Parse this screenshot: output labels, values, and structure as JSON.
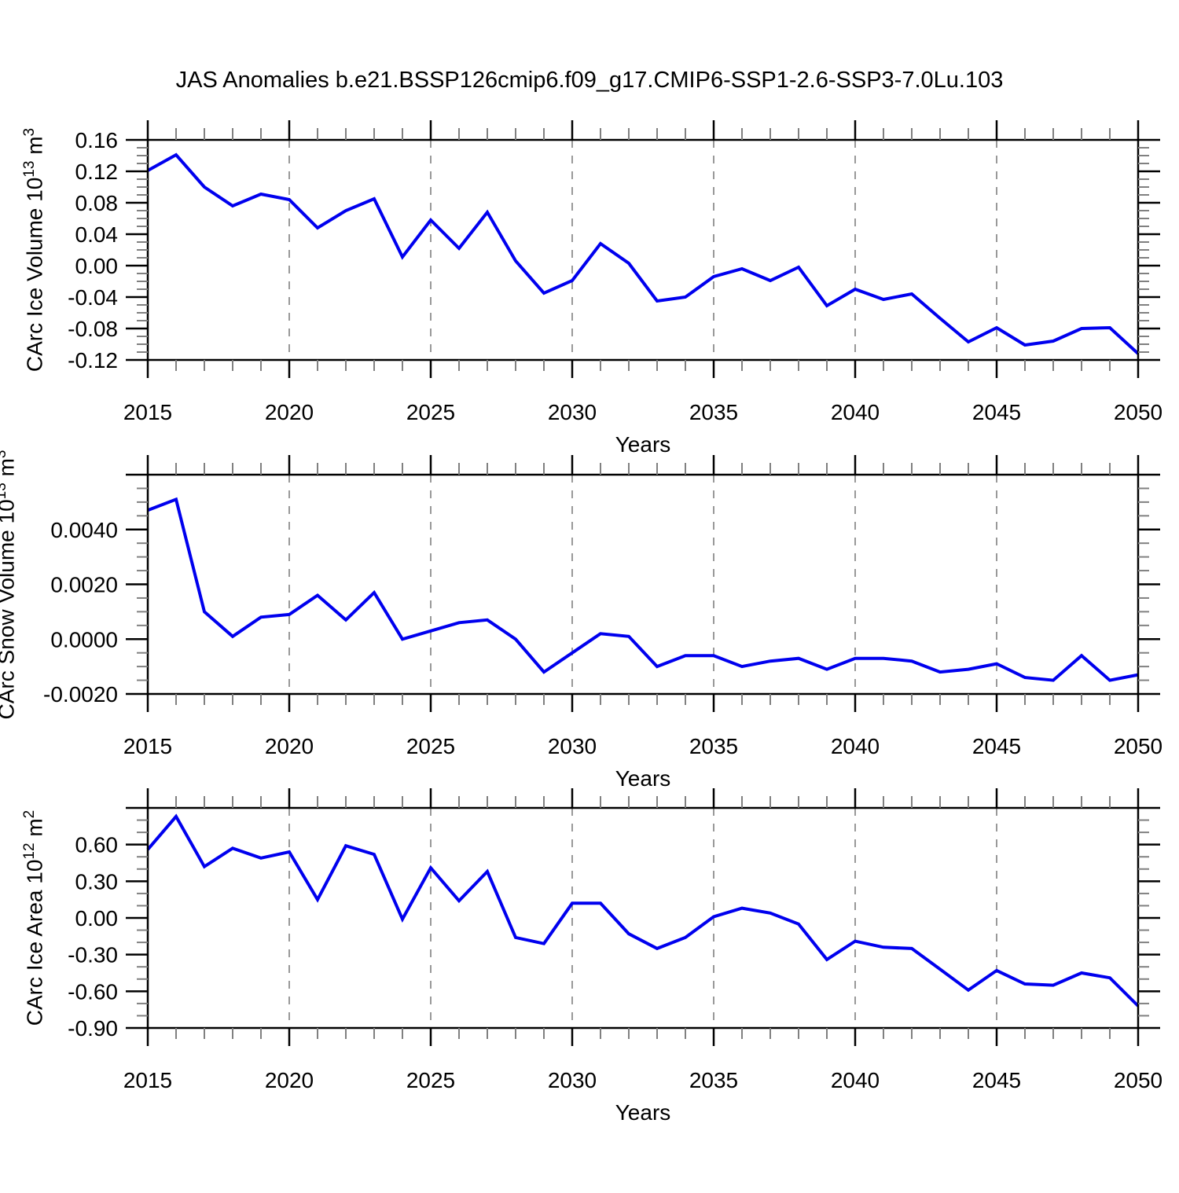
{
  "title": "JAS Anomalies b.e21.BSSP126cmip6.f09_g17.CMIP6-SSP1-2.6-SSP3-7.0Lu.103",
  "style": {
    "line_color": "#0000ee",
    "axis_color": "#000000",
    "minor_tick_color": "#808080",
    "grid_color": "#999999",
    "background": "#ffffff"
  },
  "chart_data": [
    {
      "type": "line",
      "xlabel": "Years",
      "ylabel": {
        "base": "CArc Ice Volume 10",
        "exp": "13",
        "unit": " m",
        "unit_exp": "3"
      },
      "x": {
        "start": 2015,
        "end": 2050,
        "step": 1
      },
      "values": [
        0.121,
        0.141,
        0.1,
        0.076,
        0.091,
        0.084,
        0.048,
        0.07,
        0.085,
        0.011,
        0.058,
        0.022,
        0.068,
        0.006,
        -0.035,
        -0.019,
        0.028,
        0.003,
        -0.045,
        -0.04,
        -0.014,
        -0.004,
        -0.019,
        -0.002,
        -0.051,
        -0.03,
        -0.043,
        -0.036,
        -0.067,
        -0.097,
        -0.079,
        -0.101,
        -0.096,
        -0.08,
        -0.079,
        -0.112
      ],
      "ylim": [
        -0.12,
        0.16
      ],
      "ymajors": [
        {
          "value": 0.16,
          "label": "0.16"
        },
        {
          "value": 0.12,
          "label": "0.12"
        },
        {
          "value": 0.08,
          "label": "0.08"
        },
        {
          "value": 0.04,
          "label": "0.04"
        },
        {
          "value": 0.0,
          "label": "0.00"
        },
        {
          "value": -0.04,
          "label": "-0.04"
        },
        {
          "value": -0.08,
          "label": "-0.08"
        },
        {
          "value": -0.12,
          "label": "-0.12"
        }
      ],
      "y_minor_step": 0.01,
      "xticks": [
        2015,
        2020,
        2025,
        2030,
        2035,
        2040,
        2045,
        2050
      ],
      "xtick_labels": [
        "2015",
        "2020",
        "2025",
        "2030",
        "2035",
        "2040",
        "2045",
        "2050"
      ],
      "grid_years": [
        2020,
        2025,
        2030,
        2035,
        2040,
        2045
      ],
      "grid_on": true,
      "legend": "none"
    },
    {
      "type": "line",
      "xlabel": "Years",
      "ylabel": {
        "base": "CArc Snow Volume 10",
        "exp": "13",
        "unit": " m",
        "unit_exp": "3"
      },
      "x": {
        "start": 2015,
        "end": 2050,
        "step": 1
      },
      "values": [
        0.0047,
        0.0051,
        0.001,
        0.0001,
        0.0008,
        0.0009,
        0.0016,
        0.0007,
        0.0017,
        0.0,
        0.0003,
        0.0006,
        0.0007,
        0.0,
        -0.0012,
        -0.0005,
        0.0002,
        0.0001,
        -0.001,
        -0.0006,
        -0.0006,
        -0.001,
        -0.0008,
        -0.0007,
        -0.0011,
        -0.0007,
        -0.0007,
        -0.0008,
        -0.0012,
        -0.0011,
        -0.0009,
        -0.0014,
        -0.0015,
        -0.0006,
        -0.0015,
        -0.0013
      ],
      "ylim": [
        -0.002,
        0.006
      ],
      "ymajors": [
        {
          "value": 0.006,
          "label": null
        },
        {
          "value": 0.004,
          "label": "0.0040"
        },
        {
          "value": 0.002,
          "label": "0.0020"
        },
        {
          "value": 0.0,
          "label": "0.0000"
        },
        {
          "value": -0.002,
          "label": "-0.0020"
        }
      ],
      "y_minor_step": 0.0005,
      "xticks": [
        2015,
        2020,
        2025,
        2030,
        2035,
        2040,
        2045,
        2050
      ],
      "xtick_labels": [
        "2015",
        "2020",
        "2025",
        "2030",
        "2035",
        "2040",
        "2045",
        "2050"
      ],
      "grid_years": [
        2020,
        2025,
        2030,
        2035,
        2040,
        2045
      ],
      "grid_on": true,
      "legend": "none"
    },
    {
      "type": "line",
      "xlabel": "Years",
      "ylabel": {
        "base": "CArc Ice Area 10",
        "exp": "12",
        "unit": " m",
        "unit_exp": "2"
      },
      "x": {
        "start": 2015,
        "end": 2050,
        "step": 1
      },
      "values": [
        0.56,
        0.83,
        0.42,
        0.57,
        0.49,
        0.54,
        0.15,
        0.59,
        0.52,
        -0.01,
        0.41,
        0.14,
        0.38,
        -0.16,
        -0.21,
        0.12,
        0.12,
        -0.13,
        -0.25,
        -0.16,
        0.01,
        0.08,
        0.04,
        -0.05,
        -0.34,
        -0.19,
        -0.24,
        -0.25,
        -0.42,
        -0.59,
        -0.43,
        -0.54,
        -0.55,
        -0.45,
        -0.49,
        -0.72
      ],
      "ylim": [
        -0.9,
        0.9
      ],
      "ymajors": [
        {
          "value": 0.9,
          "label": null
        },
        {
          "value": 0.6,
          "label": "0.60"
        },
        {
          "value": 0.3,
          "label": "0.30"
        },
        {
          "value": 0.0,
          "label": "0.00"
        },
        {
          "value": -0.3,
          "label": "-0.30"
        },
        {
          "value": -0.6,
          "label": "-0.60"
        },
        {
          "value": -0.9,
          "label": "-0.90"
        }
      ],
      "y_minor_step": 0.1,
      "xticks": [
        2015,
        2020,
        2025,
        2030,
        2035,
        2040,
        2045,
        2050
      ],
      "xtick_labels": [
        "2015",
        "2020",
        "2025",
        "2030",
        "2035",
        "2040",
        "2045",
        "2050"
      ],
      "grid_years": [
        2020,
        2025,
        2030,
        2035,
        2040,
        2045
      ],
      "grid_on": true,
      "legend": "none"
    }
  ]
}
